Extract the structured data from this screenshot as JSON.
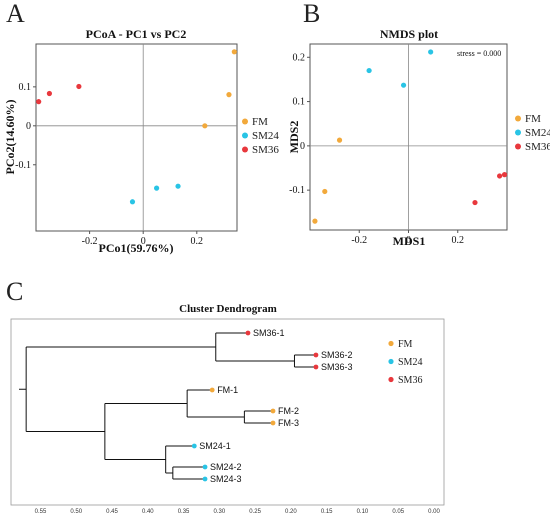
{
  "colors": {
    "FM": "#f2a93b",
    "SM24": "#29c4e5",
    "SM36": "#e8383d"
  },
  "legend": [
    "FM",
    "SM24",
    "SM36"
  ],
  "panels": {
    "a": "A",
    "b": "B",
    "c": "C"
  },
  "chart_data": [
    {
      "type": "scatter",
      "title": "PCoA - PC1 vs PC2",
      "xlabel": "PCo1(59.76%)",
      "ylabel": "PCo2(14.60%)",
      "xlim": [
        -0.4,
        0.35
      ],
      "ylim": [
        -0.27,
        0.21
      ],
      "xticks": [
        -0.2,
        0,
        0.2
      ],
      "yticks": [
        -0.1,
        0,
        0.1
      ],
      "xtick_labels": [
        "-0.2",
        "0",
        "0.2"
      ],
      "ytick_labels": [
        "-0.1",
        "0",
        "0.1"
      ],
      "legend_position": "right",
      "points": [
        {
          "group": "FM",
          "x": 0.34,
          "y": 0.19
        },
        {
          "group": "FM",
          "x": 0.32,
          "y": 0.08
        },
        {
          "group": "FM",
          "x": 0.23,
          "y": 0.0
        },
        {
          "group": "SM24",
          "x": -0.04,
          "y": -0.195
        },
        {
          "group": "SM24",
          "x": 0.05,
          "y": -0.16
        },
        {
          "group": "SM24",
          "x": 0.13,
          "y": -0.155
        },
        {
          "group": "SM36",
          "x": -0.39,
          "y": 0.062
        },
        {
          "group": "SM36",
          "x": -0.35,
          "y": 0.083
        },
        {
          "group": "SM36",
          "x": -0.24,
          "y": 0.101
        }
      ]
    },
    {
      "type": "scatter",
      "title": "NMDS plot",
      "xlabel": "MDS1",
      "ylabel": "MDS2",
      "annotation": "stress = 0.000",
      "xlim": [
        -0.4,
        0.4
      ],
      "ylim": [
        -0.19,
        0.23
      ],
      "xticks": [
        -0.2,
        0,
        0.2
      ],
      "yticks": [
        -0.1,
        0,
        0.1,
        0.2
      ],
      "xtick_labels": [
        "-0.2",
        "0",
        "0.2"
      ],
      "ytick_labels": [
        "-0.1",
        "0",
        "0.1",
        "0.2"
      ],
      "legend_position": "right",
      "points": [
        {
          "group": "FM",
          "x": -0.38,
          "y": -0.17
        },
        {
          "group": "FM",
          "x": -0.34,
          "y": -0.103
        },
        {
          "group": "FM",
          "x": -0.28,
          "y": 0.013
        },
        {
          "group": "SM24",
          "x": -0.16,
          "y": 0.17
        },
        {
          "group": "SM24",
          "x": -0.02,
          "y": 0.137
        },
        {
          "group": "SM24",
          "x": 0.09,
          "y": 0.212
        },
        {
          "group": "SM36",
          "x": 0.27,
          "y": -0.128
        },
        {
          "group": "SM36",
          "x": 0.37,
          "y": -0.068
        },
        {
          "group": "SM36",
          "x": 0.39,
          "y": -0.065
        }
      ]
    },
    {
      "type": "dendrogram",
      "title": "Cluster Dendrogram",
      "xlim": [
        0.0,
        0.58
      ],
      "xticks": [
        0.55,
        0.5,
        0.45,
        0.4,
        0.35,
        0.3,
        0.25,
        0.2,
        0.15,
        0.1,
        0.05,
        0.0
      ],
      "xtick_labels": [
        "0.55",
        "0.50",
        "0.45",
        "0.40",
        "0.35",
        "0.30",
        "0.25",
        "0.20",
        "0.15",
        "0.10",
        "0.05",
        "0.00"
      ],
      "legend_position": "right",
      "leaves": [
        {
          "label": "SM36-1",
          "group": "SM36",
          "height": 0.26
        },
        {
          "label": "SM36-2",
          "group": "SM36",
          "height": 0.165
        },
        {
          "label": "SM36-3",
          "group": "SM36",
          "height": 0.165
        },
        {
          "label": "FM-1",
          "group": "FM",
          "height": 0.31
        },
        {
          "label": "FM-2",
          "group": "FM",
          "height": 0.225
        },
        {
          "label": "FM-3",
          "group": "FM",
          "height": 0.225
        },
        {
          "label": "SM24-1",
          "group": "SM24",
          "height": 0.335
        },
        {
          "label": "SM24-2",
          "group": "SM24",
          "height": 0.32
        },
        {
          "label": "SM24-3",
          "group": "SM24",
          "height": 0.32
        }
      ],
      "merges": [
        {
          "a": [
            1
          ],
          "b": [
            2
          ],
          "height": 0.195
        },
        {
          "a": [
            0
          ],
          "b": [
            1,
            2
          ],
          "height": 0.305
        },
        {
          "a": [
            4
          ],
          "b": [
            5
          ],
          "height": 0.265
        },
        {
          "a": [
            3
          ],
          "b": [
            4,
            5
          ],
          "height": 0.345
        },
        {
          "a": [
            7
          ],
          "b": [
            8
          ],
          "height": 0.365
        },
        {
          "a": [
            6
          ],
          "b": [
            7,
            8
          ],
          "height": 0.375
        },
        {
          "a": [
            3,
            4,
            5
          ],
          "b": [
            6,
            7,
            8
          ],
          "height": 0.46
        },
        {
          "a": [
            0,
            1,
            2
          ],
          "b": [
            3,
            4,
            5,
            6,
            7,
            8
          ],
          "height": 0.57
        }
      ]
    }
  ]
}
